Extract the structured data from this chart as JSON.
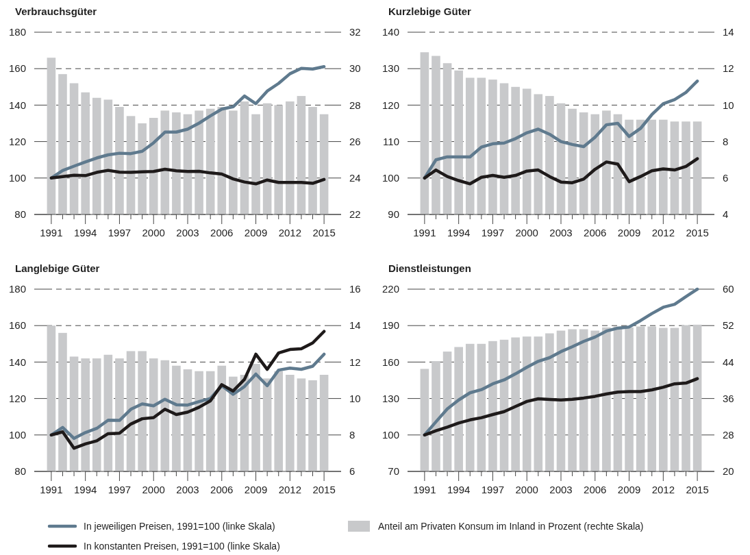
{
  "chart_data": [
    {
      "type": "line",
      "title": "Verbrauchsgüter",
      "xlim": [
        1989.5,
        2016.5
      ],
      "ylim": [
        80,
        180
      ],
      "yticks": [
        80,
        100,
        120,
        140,
        160,
        180
      ],
      "y2lim": [
        22,
        32
      ],
      "y2ticks": [
        22,
        24,
        26,
        28,
        30,
        32
      ],
      "grid": "y",
      "legend": "bottom",
      "line_style": "solid",
      "marker": "none",
      "xticks": [
        1991,
        {
          "value": 1992,
          "label": null
        },
        {
          "value": 1993,
          "label": null
        },
        1994,
        {
          "value": 1995,
          "label": null
        },
        {
          "value": 1996,
          "label": null
        },
        1997,
        {
          "value": 1998,
          "label": null
        },
        {
          "value": 1999,
          "label": null
        },
        2000,
        {
          "value": 2001,
          "label": null
        },
        {
          "value": 2002,
          "label": null
        },
        2003,
        {
          "value": 2004,
          "label": null
        },
        {
          "value": 2005,
          "label": null
        },
        2006,
        {
          "value": 2007,
          "label": null
        },
        {
          "value": 2008,
          "label": null
        },
        2009,
        {
          "value": 2010,
          "label": null
        },
        {
          "value": 2011,
          "label": null
        },
        2012,
        {
          "value": 2013,
          "label": null
        },
        {
          "value": 2014,
          "label": null
        },
        2015
      ],
      "x": [
        1991,
        1992,
        1993,
        1994,
        1995,
        1996,
        1997,
        1998,
        1999,
        2000,
        2001,
        2002,
        2003,
        2004,
        2005,
        2006,
        2007,
        2008,
        2009,
        2010,
        2011,
        2012,
        2013,
        2014,
        2015
      ],
      "series": [
        {
          "type": "bar",
          "axis": "y2",
          "name": "Anteil am Privaten Konsum im Inland in Prozent (rechte Skala)",
          "color": "#c8c9cb",
          "values": [
            30.6,
            29.7,
            29.2,
            28.7,
            28.4,
            28.3,
            27.9,
            27.4,
            27.0,
            27.3,
            27.7,
            27.6,
            27.5,
            27.7,
            27.8,
            27.9,
            27.7,
            28.2,
            27.5,
            28.1,
            28.0,
            28.2,
            28.5,
            27.9,
            27.5
          ]
        },
        {
          "name": "In jeweiligen Preisen, 1991=100 (linke Skala)",
          "color": "#5f7a8e",
          "values": [
            100,
            104.1,
            106.5,
            108.8,
            111,
            112.7,
            113.6,
            113.4,
            114.7,
            119.3,
            125.2,
            125.2,
            126.8,
            130.1,
            134.1,
            137.8,
            139.1,
            145,
            140.8,
            147.7,
            151.9,
            157.2,
            160.2,
            159.8,
            161.1
          ]
        },
        {
          "name": "In konstanten Preisen, 1991=100 (linke Skala)",
          "color": "#1e1a1a",
          "values": [
            100,
            100.8,
            101.5,
            101.3,
            103.1,
            104.2,
            103.2,
            103.1,
            103.4,
            103.6,
            104.8,
            104,
            103.6,
            103.7,
            102.8,
            102.2,
            99.5,
            97.8,
            96.8,
            98.9,
            97.6,
            97.6,
            97.6,
            97.1,
            99.2
          ]
        }
      ]
    },
    {
      "type": "line",
      "title": "Kurzlebige Güter",
      "xlim": [
        1989.5,
        2016.5
      ],
      "ylim": [
        90,
        140
      ],
      "yticks": [
        90,
        100,
        110,
        120,
        130,
        140
      ],
      "y2lim": [
        4,
        14
      ],
      "y2ticks": [
        4,
        6,
        8,
        10,
        12,
        14
      ],
      "grid": "y",
      "line_style": "solid",
      "marker": "none",
      "xticks": [
        1991,
        {
          "value": 1992,
          "label": null
        },
        {
          "value": 1993,
          "label": null
        },
        1994,
        {
          "value": 1995,
          "label": null
        },
        {
          "value": 1996,
          "label": null
        },
        1997,
        {
          "value": 1998,
          "label": null
        },
        {
          "value": 1999,
          "label": null
        },
        2000,
        {
          "value": 2001,
          "label": null
        },
        {
          "value": 2002,
          "label": null
        },
        2003,
        {
          "value": 2004,
          "label": null
        },
        {
          "value": 2005,
          "label": null
        },
        2006,
        {
          "value": 2007,
          "label": null
        },
        {
          "value": 2008,
          "label": null
        },
        2009,
        {
          "value": 2010,
          "label": null
        },
        {
          "value": 2011,
          "label": null
        },
        2012,
        {
          "value": 2013,
          "label": null
        },
        {
          "value": 2014,
          "label": null
        },
        2015
      ],
      "x": [
        1991,
        1992,
        1993,
        1994,
        1995,
        1996,
        1997,
        1998,
        1999,
        2000,
        2001,
        2002,
        2003,
        2004,
        2005,
        2006,
        2007,
        2008,
        2009,
        2010,
        2011,
        2012,
        2013,
        2014,
        2015
      ],
      "series": [
        {
          "type": "bar",
          "axis": "y2",
          "color": "#c8c9cb",
          "values": [
            12.9,
            12.7,
            12.3,
            11.9,
            11.5,
            11.5,
            11.4,
            11.2,
            11.0,
            10.9,
            10.6,
            10.5,
            10.1,
            9.8,
            9.6,
            9.5,
            9.7,
            9.5,
            9.2,
            9.2,
            9.2,
            9.2,
            9.1,
            9.1,
            9.1
          ]
        },
        {
          "color": "#5f7a8e",
          "values": [
            100,
            105,
            105.8,
            105.8,
            105.8,
            108.5,
            109.4,
            109.6,
            110.8,
            112.4,
            113.4,
            112,
            110,
            109.2,
            108.6,
            111.2,
            114.6,
            115,
            111.4,
            113.6,
            117.4,
            120.4,
            121.5,
            123.5,
            126.6
          ]
        },
        {
          "color": "#1e1a1a",
          "values": [
            100,
            102.2,
            100.4,
            99.3,
            98.4,
            100.2,
            100.7,
            100.2,
            100.7,
            101.9,
            102.2,
            100.4,
            98.9,
            98.7,
            99.7,
            102.4,
            104.4,
            103.8,
            99,
            100.4,
            102,
            102.5,
            102.2,
            103.2,
            105.3
          ]
        }
      ]
    },
    {
      "type": "line",
      "title": "Langlebige Güter",
      "xlim": [
        1989.5,
        2016.5
      ],
      "ylim": [
        80,
        180
      ],
      "yticks": [
        80,
        100,
        120,
        140,
        160,
        180
      ],
      "y2lim": [
        6,
        16
      ],
      "y2ticks": [
        6,
        8,
        10,
        12,
        14,
        16
      ],
      "grid": "y",
      "line_style": "solid",
      "marker": "none",
      "xticks": [
        1991,
        {
          "value": 1992,
          "label": null
        },
        {
          "value": 1993,
          "label": null
        },
        1994,
        {
          "value": 1995,
          "label": null
        },
        {
          "value": 1996,
          "label": null
        },
        1997,
        {
          "value": 1998,
          "label": null
        },
        {
          "value": 1999,
          "label": null
        },
        2000,
        {
          "value": 2001,
          "label": null
        },
        {
          "value": 2002,
          "label": null
        },
        2003,
        {
          "value": 2004,
          "label": null
        },
        {
          "value": 2005,
          "label": null
        },
        2006,
        {
          "value": 2007,
          "label": null
        },
        {
          "value": 2008,
          "label": null
        },
        2009,
        {
          "value": 2010,
          "label": null
        },
        {
          "value": 2011,
          "label": null
        },
        2012,
        {
          "value": 2013,
          "label": null
        },
        {
          "value": 2014,
          "label": null
        },
        2015
      ],
      "x": [
        1991,
        1992,
        1993,
        1994,
        1995,
        1996,
        1997,
        1998,
        1999,
        2000,
        2001,
        2002,
        2003,
        2004,
        2005,
        2006,
        2007,
        2008,
        2009,
        2010,
        2011,
        2012,
        2013,
        2014,
        2015
      ],
      "series": [
        {
          "type": "bar",
          "axis": "y2",
          "color": "#c8c9cb",
          "values": [
            14.0,
            13.6,
            12.3,
            12.2,
            12.2,
            12.4,
            12.2,
            12.6,
            12.6,
            12.2,
            12.1,
            11.8,
            11.6,
            11.5,
            11.5,
            11.8,
            11.2,
            11.3,
            11.9,
            11.1,
            11.5,
            11.3,
            11.1,
            11.0,
            11.3
          ]
        },
        {
          "color": "#5f7a8e",
          "values": [
            100,
            104.1,
            98.1,
            101.3,
            103.6,
            108.1,
            108,
            114.1,
            117,
            116,
            119.6,
            116.6,
            116.4,
            118.3,
            120,
            127,
            122.3,
            126.6,
            133.4,
            127,
            135.6,
            136.7,
            136,
            137.7,
            144.3
          ]
        },
        {
          "color": "#1e1a1a",
          "values": [
            100,
            101.7,
            92.7,
            95.1,
            96.8,
            100.7,
            101,
            106,
            108.9,
            109.5,
            114.1,
            111.2,
            112.5,
            115.2,
            118.7,
            127.6,
            124.1,
            130.5,
            144.3,
            136,
            145,
            146.9,
            147.3,
            150.5,
            156.8
          ]
        }
      ]
    },
    {
      "type": "line",
      "title": "Dienstleistungen",
      "xlim": [
        1989.5,
        2016.5
      ],
      "ylim": [
        70,
        220
      ],
      "yticks": [
        70,
        100,
        130,
        160,
        190,
        220
      ],
      "y2lim": [
        20,
        60
      ],
      "y2ticks": [
        20,
        28,
        36,
        44,
        52,
        60
      ],
      "grid": "y",
      "line_style": "solid",
      "marker": "none",
      "xticks": [
        1991,
        {
          "value": 1992,
          "label": null
        },
        {
          "value": 1993,
          "label": null
        },
        1994,
        {
          "value": 1995,
          "label": null
        },
        {
          "value": 1996,
          "label": null
        },
        1997,
        {
          "value": 1998,
          "label": null
        },
        {
          "value": 1999,
          "label": null
        },
        2000,
        {
          "value": 2001,
          "label": null
        },
        {
          "value": 2002,
          "label": null
        },
        2003,
        {
          "value": 2004,
          "label": null
        },
        {
          "value": 2005,
          "label": null
        },
        2006,
        {
          "value": 2007,
          "label": null
        },
        {
          "value": 2008,
          "label": null
        },
        2009,
        {
          "value": 2010,
          "label": null
        },
        {
          "value": 2011,
          "label": null
        },
        2012,
        {
          "value": 2013,
          "label": null
        },
        {
          "value": 2014,
          "label": null
        },
        2015
      ],
      "x": [
        1991,
        1992,
        1993,
        1994,
        1995,
        1996,
        1997,
        1998,
        1999,
        2000,
        2001,
        2002,
        2003,
        2004,
        2005,
        2006,
        2007,
        2008,
        2009,
        2010,
        2011,
        2012,
        2013,
        2014,
        2015
      ],
      "series": [
        {
          "type": "bar",
          "axis": "y2",
          "color": "#c8c9cb",
          "values": [
            42.5,
            44.2,
            46.3,
            47.3,
            48.0,
            48.0,
            48.6,
            48.9,
            49.4,
            49.6,
            49.6,
            50.3,
            50.9,
            51.2,
            51.2,
            50.9,
            51.6,
            51.8,
            51.6,
            51.8,
            51.8,
            51.5,
            51.5,
            52.1,
            52.2
          ]
        },
        {
          "color": "#5f7a8e",
          "values": [
            100,
            110.8,
            121.4,
            128.8,
            134.7,
            137.3,
            142.1,
            145.3,
            150.3,
            155.7,
            160.6,
            163.6,
            168.6,
            172.6,
            177,
            180.6,
            185.5,
            187.9,
            188.9,
            194.1,
            199.9,
            205.1,
            207.5,
            213.9,
            220
          ]
        },
        {
          "color": "#1e1a1a",
          "values": [
            100,
            103.5,
            106.5,
            109.8,
            112.4,
            114.2,
            116.8,
            119.2,
            123.4,
            127.6,
            129.8,
            129.2,
            128.8,
            129.4,
            130.4,
            131.8,
            133.7,
            135.3,
            135.7,
            135.7,
            137.1,
            139.3,
            142.1,
            142.7,
            146.3
          ]
        }
      ]
    }
  ]
}
